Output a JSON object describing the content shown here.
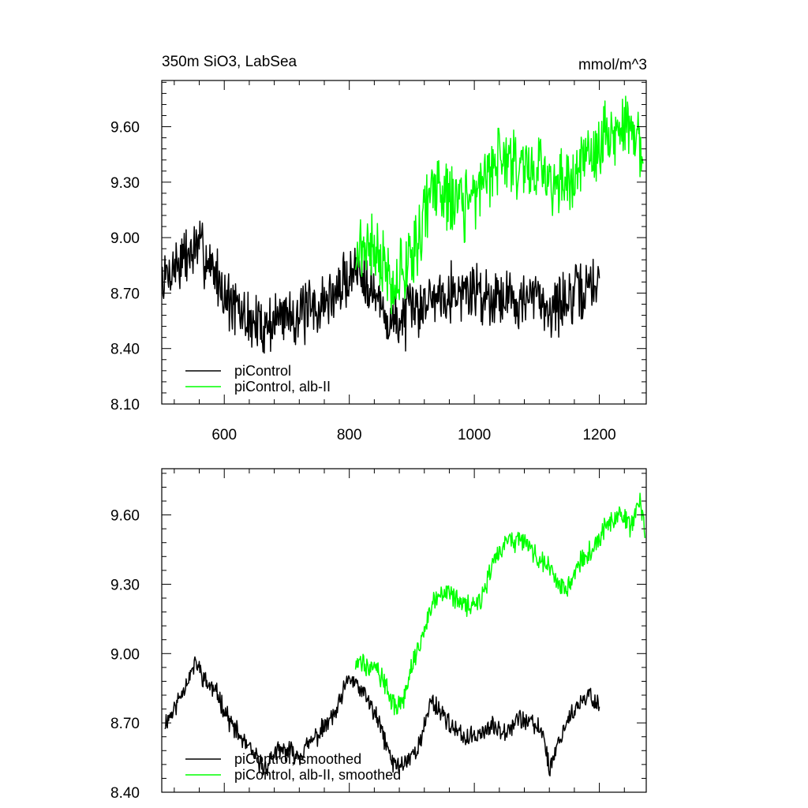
{
  "chart_data": [
    {
      "type": "line",
      "title": "350m SiO3, LabSea",
      "units": "mmol/m^3",
      "xlim": [
        500,
        1275
      ],
      "ylim": [
        8.1,
        9.85
      ],
      "xticks": [
        600,
        800,
        1000,
        1200
      ],
      "yticks": [
        8.1,
        8.4,
        8.7,
        9.0,
        9.3,
        9.6
      ],
      "xtick_labels": [
        "600",
        "800",
        "1000",
        "1200"
      ],
      "ytick_labels": [
        "8.10",
        "8.40",
        "8.70",
        "9.00",
        "9.30",
        "9.60"
      ],
      "legend_position": "bottom-left",
      "series": [
        {
          "name": "piControl",
          "color": "#000000",
          "x": [
            500,
            520,
            540,
            560,
            580,
            600,
            620,
            640,
            660,
            680,
            700,
            720,
            740,
            760,
            780,
            800,
            820,
            840,
            860,
            880,
            900,
            920,
            940,
            960,
            980,
            1000,
            1020,
            1040,
            1060,
            1080,
            1100,
            1120,
            1140,
            1160,
            1180,
            1200
          ],
          "y": [
            8.75,
            8.85,
            8.9,
            8.95,
            8.85,
            8.7,
            8.6,
            8.55,
            8.52,
            8.55,
            8.6,
            8.58,
            8.6,
            8.65,
            8.7,
            8.8,
            8.85,
            8.7,
            8.55,
            8.55,
            8.6,
            8.65,
            8.7,
            8.72,
            8.7,
            8.72,
            8.68,
            8.7,
            8.68,
            8.65,
            8.68,
            8.62,
            8.65,
            8.68,
            8.72,
            8.78
          ],
          "noise": 0.13,
          "seed": 7
        },
        {
          "name": "piControl, alb-II",
          "color": "#00ff00",
          "x": [
            810,
            830,
            850,
            870,
            890,
            910,
            930,
            950,
            970,
            990,
            1010,
            1030,
            1050,
            1070,
            1090,
            1110,
            1130,
            1150,
            1170,
            1190,
            1210,
            1230,
            1250,
            1270
          ],
          "y": [
            8.95,
            8.95,
            8.9,
            8.75,
            8.85,
            9.0,
            9.25,
            9.25,
            9.2,
            9.15,
            9.3,
            9.4,
            9.45,
            9.4,
            9.4,
            9.35,
            9.3,
            9.25,
            9.4,
            9.45,
            9.55,
            9.55,
            9.65,
            9.4
          ],
          "noise": 0.15,
          "seed": 21
        }
      ]
    },
    {
      "type": "line",
      "title": "",
      "units": "",
      "xlim": [
        500,
        1275
      ],
      "ylim": [
        8.4,
        9.8
      ],
      "xticks": [
        600,
        800,
        1000,
        1200
      ],
      "yticks": [
        8.4,
        8.7,
        9.0,
        9.3,
        9.6
      ],
      "ytick_labels": [
        "8.40",
        "8.70",
        "9.00",
        "9.30",
        "9.60"
      ],
      "legend_position": "bottom-left",
      "series": [
        {
          "name": "piControl, smoothed",
          "color": "#000000",
          "x": [
            505,
            520,
            540,
            555,
            570,
            590,
            610,
            630,
            650,
            665,
            680,
            700,
            720,
            740,
            760,
            780,
            800,
            815,
            830,
            850,
            870,
            885,
            900,
            915,
            930,
            950,
            970,
            990,
            1010,
            1030,
            1050,
            1070,
            1090,
            1110,
            1120,
            1135,
            1150,
            1170,
            1185,
            1200
          ],
          "y": [
            8.7,
            8.76,
            8.88,
            8.96,
            8.88,
            8.82,
            8.7,
            8.62,
            8.55,
            8.5,
            8.57,
            8.58,
            8.56,
            8.62,
            8.68,
            8.75,
            8.9,
            8.85,
            8.8,
            8.68,
            8.52,
            8.52,
            8.56,
            8.62,
            8.8,
            8.74,
            8.66,
            8.63,
            8.66,
            8.68,
            8.67,
            8.72,
            8.7,
            8.66,
            8.5,
            8.62,
            8.72,
            8.78,
            8.82,
            8.77
          ],
          "noise": 0.035,
          "seed": 11
        },
        {
          "name": "piControl, alb-II, smoothed",
          "color": "#00ff00",
          "x": [
            810,
            825,
            840,
            855,
            870,
            885,
            900,
            915,
            935,
            955,
            975,
            990,
            1010,
            1030,
            1050,
            1070,
            1090,
            1110,
            1130,
            1150,
            1170,
            1190,
            1210,
            1230,
            1250,
            1265,
            1273
          ],
          "y": [
            8.96,
            8.95,
            8.97,
            8.88,
            8.78,
            8.78,
            8.95,
            9.05,
            9.25,
            9.28,
            9.22,
            9.2,
            9.22,
            9.38,
            9.48,
            9.5,
            9.45,
            9.4,
            9.32,
            9.28,
            9.4,
            9.45,
            9.55,
            9.6,
            9.55,
            9.68,
            9.5
          ],
          "noise": 0.04,
          "seed": 33
        }
      ]
    }
  ]
}
